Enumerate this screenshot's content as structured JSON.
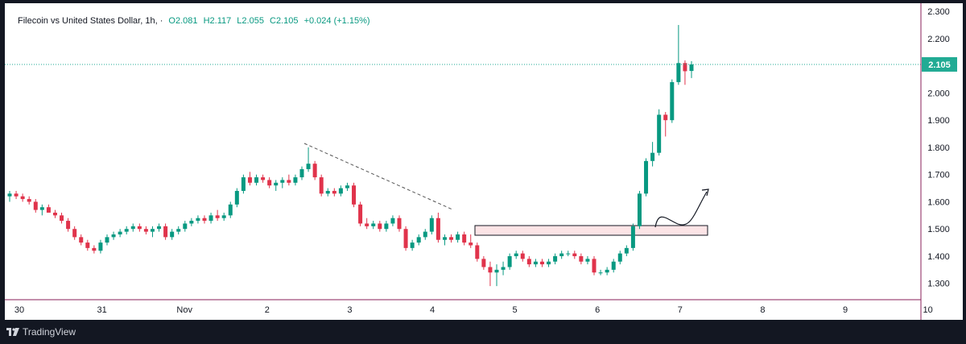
{
  "header": {
    "symbol_title": "Filecoin vs United States Dollar, 1h, ·",
    "open_label": "O2.081",
    "high_label": "H2.117",
    "low_label": "L2.055",
    "close_label": "C2.105",
    "change_label": "+0.024 (+1.15%)"
  },
  "footer": {
    "brand": "TradingView"
  },
  "colors": {
    "up": "#089981",
    "down": "#e0334b",
    "axis": "#8a1f5a",
    "last_price_bg": "#22ab94",
    "zone_fill": "#fce4e6"
  },
  "chart_data": {
    "type": "candlestick",
    "timeframe": "1h",
    "title": "Filecoin vs United States Dollar",
    "ylim": [
      1.24,
      2.33
    ],
    "y_ticks": [
      "1.300",
      "1.400",
      "1.500",
      "1.600",
      "1.700",
      "1.800",
      "1.900",
      "2.000",
      "2.100",
      "2.200",
      "2.300"
    ],
    "x_ticks": [
      "30",
      "31",
      "Nov",
      "2",
      "3",
      "4",
      "5",
      "6",
      "7",
      "8",
      "9",
      "10"
    ],
    "last_price": "2.105",
    "candles": [
      [
        1.62,
        1.64,
        1.6,
        1.63
      ],
      [
        1.63,
        1.64,
        1.61,
        1.62
      ],
      [
        1.62,
        1.63,
        1.6,
        1.61
      ],
      [
        1.61,
        1.62,
        1.59,
        1.6
      ],
      [
        1.6,
        1.61,
        1.56,
        1.57
      ],
      [
        1.57,
        1.59,
        1.55,
        1.58
      ],
      [
        1.58,
        1.59,
        1.56,
        1.56
      ],
      [
        1.56,
        1.57,
        1.54,
        1.55
      ],
      [
        1.55,
        1.56,
        1.52,
        1.53
      ],
      [
        1.53,
        1.54,
        1.49,
        1.5
      ],
      [
        1.5,
        1.51,
        1.46,
        1.47
      ],
      [
        1.47,
        1.48,
        1.44,
        1.45
      ],
      [
        1.45,
        1.46,
        1.42,
        1.43
      ],
      [
        1.43,
        1.44,
        1.41,
        1.42
      ],
      [
        1.42,
        1.46,
        1.41,
        1.45
      ],
      [
        1.45,
        1.48,
        1.44,
        1.47
      ],
      [
        1.47,
        1.49,
        1.46,
        1.48
      ],
      [
        1.48,
        1.5,
        1.47,
        1.49
      ],
      [
        1.49,
        1.51,
        1.48,
        1.5
      ],
      [
        1.5,
        1.52,
        1.49,
        1.51
      ],
      [
        1.51,
        1.52,
        1.49,
        1.5
      ],
      [
        1.5,
        1.51,
        1.48,
        1.49
      ],
      [
        1.49,
        1.51,
        1.47,
        1.5
      ],
      [
        1.5,
        1.52,
        1.49,
        1.51
      ],
      [
        1.51,
        1.52,
        1.46,
        1.47
      ],
      [
        1.47,
        1.5,
        1.46,
        1.49
      ],
      [
        1.49,
        1.51,
        1.48,
        1.5
      ],
      [
        1.5,
        1.53,
        1.49,
        1.52
      ],
      [
        1.52,
        1.54,
        1.51,
        1.53
      ],
      [
        1.53,
        1.55,
        1.52,
        1.54
      ],
      [
        1.54,
        1.55,
        1.52,
        1.53
      ],
      [
        1.53,
        1.56,
        1.52,
        1.55
      ],
      [
        1.55,
        1.57,
        1.53,
        1.54
      ],
      [
        1.54,
        1.56,
        1.53,
        1.55
      ],
      [
        1.55,
        1.6,
        1.54,
        1.59
      ],
      [
        1.59,
        1.65,
        1.58,
        1.64
      ],
      [
        1.64,
        1.7,
        1.63,
        1.69
      ],
      [
        1.69,
        1.71,
        1.66,
        1.67
      ],
      [
        1.67,
        1.7,
        1.66,
        1.69
      ],
      [
        1.69,
        1.7,
        1.67,
        1.68
      ],
      [
        1.68,
        1.69,
        1.65,
        1.66
      ],
      [
        1.66,
        1.68,
        1.64,
        1.67
      ],
      [
        1.67,
        1.69,
        1.65,
        1.68
      ],
      [
        1.68,
        1.7,
        1.66,
        1.67
      ],
      [
        1.67,
        1.7,
        1.66,
        1.69
      ],
      [
        1.69,
        1.73,
        1.68,
        1.72
      ],
      [
        1.72,
        1.8,
        1.71,
        1.74
      ],
      [
        1.74,
        1.75,
        1.68,
        1.69
      ],
      [
        1.69,
        1.7,
        1.62,
        1.63
      ],
      [
        1.63,
        1.65,
        1.62,
        1.64
      ],
      [
        1.64,
        1.65,
        1.62,
        1.63
      ],
      [
        1.63,
        1.66,
        1.62,
        1.65
      ],
      [
        1.65,
        1.67,
        1.64,
        1.66
      ],
      [
        1.66,
        1.67,
        1.58,
        1.59
      ],
      [
        1.59,
        1.6,
        1.51,
        1.52
      ],
      [
        1.52,
        1.54,
        1.5,
        1.51
      ],
      [
        1.51,
        1.53,
        1.5,
        1.52
      ],
      [
        1.52,
        1.53,
        1.49,
        1.5
      ],
      [
        1.5,
        1.53,
        1.49,
        1.52
      ],
      [
        1.52,
        1.55,
        1.51,
        1.54
      ],
      [
        1.54,
        1.55,
        1.49,
        1.5
      ],
      [
        1.5,
        1.51,
        1.42,
        1.43
      ],
      [
        1.43,
        1.46,
        1.42,
        1.45
      ],
      [
        1.45,
        1.48,
        1.44,
        1.47
      ],
      [
        1.47,
        1.5,
        1.46,
        1.49
      ],
      [
        1.49,
        1.55,
        1.48,
        1.54
      ],
      [
        1.54,
        1.56,
        1.45,
        1.46
      ],
      [
        1.46,
        1.48,
        1.44,
        1.47
      ],
      [
        1.47,
        1.48,
        1.45,
        1.46
      ],
      [
        1.46,
        1.49,
        1.45,
        1.48
      ],
      [
        1.48,
        1.49,
        1.44,
        1.45
      ],
      [
        1.45,
        1.48,
        1.43,
        1.44
      ],
      [
        1.44,
        1.45,
        1.38,
        1.39
      ],
      [
        1.39,
        1.4,
        1.35,
        1.36
      ],
      [
        1.36,
        1.38,
        1.29,
        1.34
      ],
      [
        1.34,
        1.37,
        1.29,
        1.35
      ],
      [
        1.35,
        1.38,
        1.33,
        1.36
      ],
      [
        1.36,
        1.41,
        1.35,
        1.4
      ],
      [
        1.4,
        1.42,
        1.39,
        1.41
      ],
      [
        1.41,
        1.42,
        1.38,
        1.39
      ],
      [
        1.39,
        1.4,
        1.36,
        1.37
      ],
      [
        1.37,
        1.39,
        1.36,
        1.38
      ],
      [
        1.38,
        1.39,
        1.36,
        1.37
      ],
      [
        1.37,
        1.39,
        1.36,
        1.38
      ],
      [
        1.38,
        1.41,
        1.37,
        1.4
      ],
      [
        1.4,
        1.42,
        1.39,
        1.41
      ],
      [
        1.41,
        1.42,
        1.4,
        1.41
      ],
      [
        1.41,
        1.42,
        1.39,
        1.4
      ],
      [
        1.4,
        1.41,
        1.37,
        1.38
      ],
      [
        1.38,
        1.4,
        1.37,
        1.39
      ],
      [
        1.39,
        1.4,
        1.33,
        1.34
      ],
      [
        1.34,
        1.35,
        1.33,
        1.34
      ],
      [
        1.34,
        1.36,
        1.33,
        1.35
      ],
      [
        1.35,
        1.39,
        1.34,
        1.38
      ],
      [
        1.38,
        1.42,
        1.37,
        1.41
      ],
      [
        1.41,
        1.44,
        1.4,
        1.43
      ],
      [
        1.43,
        1.52,
        1.42,
        1.51
      ],
      [
        1.51,
        1.64,
        1.5,
        1.63
      ],
      [
        1.63,
        1.76,
        1.62,
        1.75
      ],
      [
        1.75,
        1.82,
        1.73,
        1.78
      ],
      [
        1.78,
        1.94,
        1.77,
        1.92
      ],
      [
        1.92,
        1.93,
        1.84,
        1.9
      ],
      [
        1.9,
        2.05,
        1.89,
        2.04
      ],
      [
        2.04,
        2.25,
        2.03,
        2.11
      ],
      [
        2.11,
        2.12,
        2.03,
        2.08
      ],
      [
        2.081,
        2.117,
        2.055,
        2.105
      ]
    ]
  }
}
